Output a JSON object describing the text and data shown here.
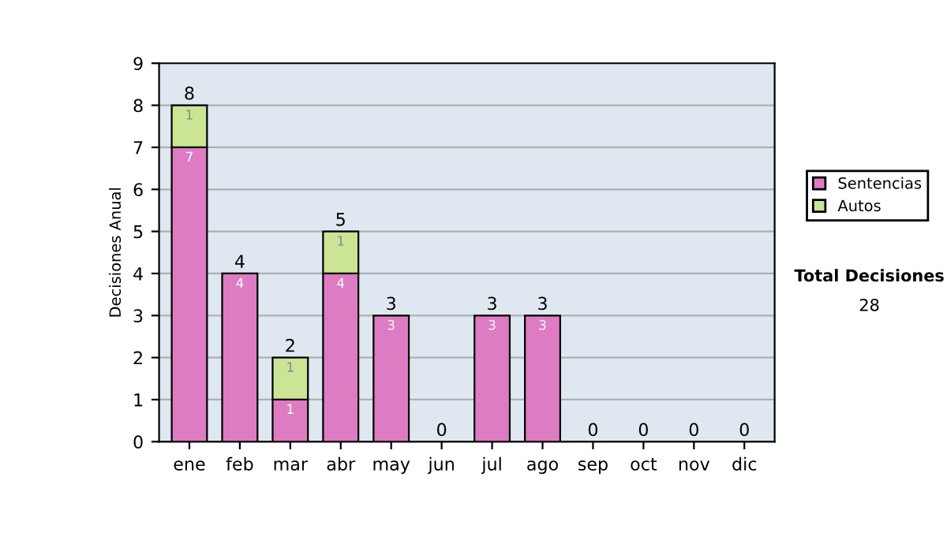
{
  "chart_data": {
    "type": "bar",
    "stacked": true,
    "ylabel": "Decisiones Anual",
    "categories": [
      "ene",
      "feb",
      "mar",
      "abr",
      "may",
      "jun",
      "jul",
      "ago",
      "sep",
      "oct",
      "nov",
      "dic"
    ],
    "series": [
      {
        "name": "Sentencias",
        "color": "#dd7cc2",
        "values": [
          7,
          4,
          1,
          4,
          3,
          0,
          3,
          3,
          0,
          0,
          0,
          0
        ],
        "value_labels": [
          "7",
          "4",
          "1",
          "4",
          "3",
          null,
          "3",
          "3",
          null,
          null,
          null,
          null
        ]
      },
      {
        "name": "Autos",
        "color": "#cbe595",
        "values": [
          1,
          0,
          1,
          1,
          0,
          0,
          0,
          0,
          0,
          0,
          0,
          0
        ],
        "value_labels": [
          "1",
          null,
          "1",
          "1",
          null,
          null,
          null,
          null,
          null,
          null,
          null,
          null
        ]
      }
    ],
    "totals": [
      "8",
      "4",
      "2",
      "5",
      "3",
      "0",
      "3",
      "3",
      "0",
      "0",
      "0",
      "0"
    ],
    "ylim": [
      0,
      9
    ],
    "yticks": [
      0,
      1,
      2,
      3,
      4,
      5,
      6,
      7,
      8,
      9
    ],
    "grid": "y",
    "legend": "right",
    "annotations": [
      "Total Decisiones",
      "28"
    ]
  }
}
